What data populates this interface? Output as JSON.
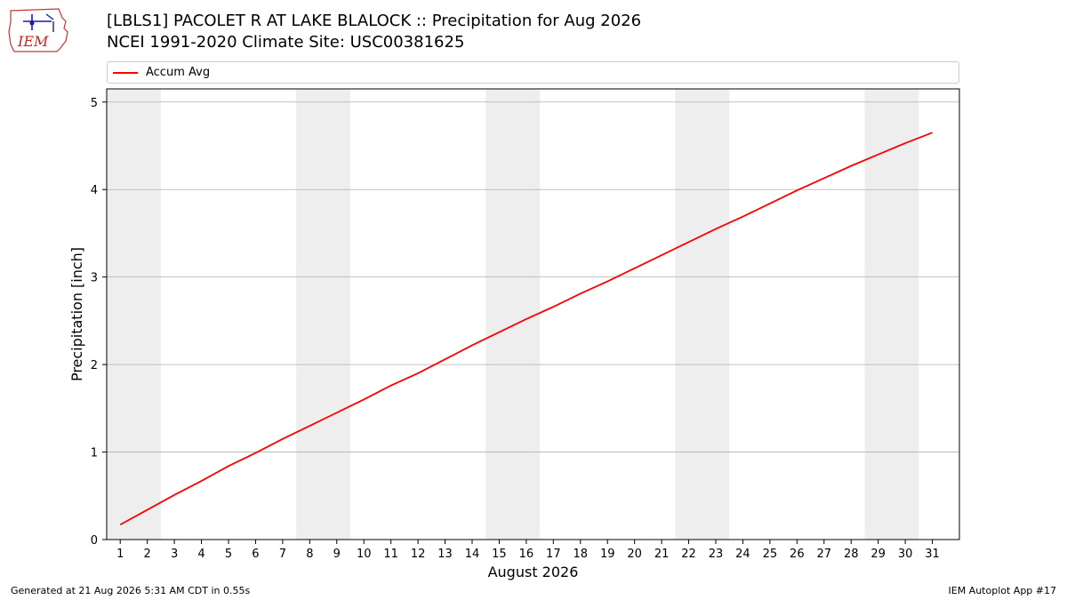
{
  "header": {
    "title": "[LBLS1] PACOLET R AT LAKE BLALOCK :: Precipitation for Aug 2026",
    "subtitle": "NCEI 1991-2020 Climate Site: USC00381625"
  },
  "logo": {
    "text": "IEM",
    "icon": "iem-logo-icon"
  },
  "footer": {
    "generated": "Generated at 21 Aug 2026 5:31 AM CDT in 0.55s",
    "app": "IEM Autoplot App #17"
  },
  "colors": {
    "series": "#ff0000",
    "weekend_band": "#eeeeee",
    "grid": "#b0b0b0"
  },
  "chart_data": {
    "type": "line",
    "xlabel": "August 2026",
    "ylabel": "Precipitation [inch]",
    "xlim": [
      0.5,
      32
    ],
    "ylim": [
      0,
      5.15
    ],
    "x_ticks": [
      1,
      2,
      3,
      4,
      5,
      6,
      7,
      8,
      9,
      10,
      11,
      12,
      13,
      14,
      15,
      16,
      17,
      18,
      19,
      20,
      21,
      22,
      23,
      24,
      25,
      26,
      27,
      28,
      29,
      30,
      31
    ],
    "y_ticks": [
      0,
      1,
      2,
      3,
      4,
      5
    ],
    "grid": "y",
    "legend": "top",
    "shaded_days": [
      [
        1,
        2
      ],
      [
        8,
        9
      ],
      [
        15,
        16
      ],
      [
        22,
        23
      ],
      [
        29,
        30
      ]
    ],
    "series": [
      {
        "name": "Accum Avg",
        "x": [
          1,
          2,
          3,
          4,
          5,
          6,
          7,
          8,
          9,
          10,
          11,
          12,
          13,
          14,
          15,
          16,
          17,
          18,
          19,
          20,
          21,
          22,
          23,
          24,
          25,
          26,
          27,
          28,
          29,
          30,
          31
        ],
        "values": [
          0.17,
          0.34,
          0.51,
          0.67,
          0.84,
          0.99,
          1.15,
          1.3,
          1.45,
          1.6,
          1.76,
          1.9,
          2.06,
          2.22,
          2.37,
          2.52,
          2.66,
          2.81,
          2.95,
          3.1,
          3.25,
          3.4,
          3.55,
          3.69,
          3.84,
          3.99,
          4.13,
          4.27,
          4.4,
          4.53,
          4.65
        ]
      }
    ]
  }
}
